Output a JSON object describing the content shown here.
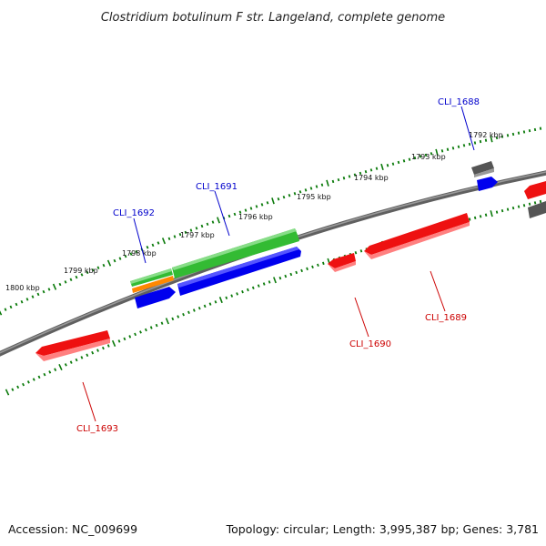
{
  "title": "Clostridium botulinum F str. Langeland, complete genome",
  "footer": {
    "accession": "Accession: NC_009699",
    "topology": "Topology: circular; Length: 3,995,387 bp; Genes: 3,781"
  },
  "kbp_labels": [
    "1792 kbp",
    "1793 kbp",
    "1794 kbp",
    "1795 kbp",
    "1796 kbp",
    "1797 kbp",
    "1798 kbp",
    "1799 kbp",
    "1800 kbp"
  ],
  "colors": {
    "backbone": "#808080",
    "ticks": "#0a7a0a",
    "plus_strand_label": "#0000cc",
    "minus_strand_label": "#cc0000",
    "gene_red": "#ee1111",
    "gene_green": "#33bb33",
    "gene_blue": "#0000ee",
    "gene_orange": "#ff8800",
    "gene_gray": "#666666"
  },
  "genes": [
    {
      "name": "CLI_1688",
      "strand": "+",
      "color": "gene_gray"
    },
    {
      "name": "CLI_1689",
      "strand": "-",
      "color": "gene_red"
    },
    {
      "name": "CLI_1690",
      "strand": "-",
      "color": "gene_red"
    },
    {
      "name": "CLI_1691",
      "strand": "+",
      "color": "gene_green"
    },
    {
      "name": "CLI_1692",
      "strand": "+",
      "color": "gene_green"
    },
    {
      "name": "CLI_1693",
      "strand": "-",
      "color": "gene_red"
    }
  ]
}
